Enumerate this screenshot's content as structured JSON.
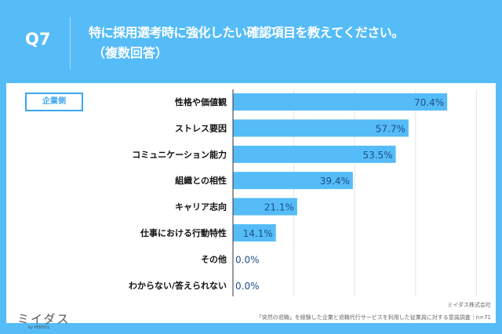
{
  "header": {
    "q": "Q7",
    "title_line1": "特に採用選考時に強化したい確認項目を教えてください。",
    "title_line2": "（複数回答）"
  },
  "badge": "企業側",
  "chart_data": {
    "type": "bar",
    "orientation": "horizontal",
    "categories": [
      "性格や価値観",
      "ストレス要因",
      "コミュニケーション能力",
      "組織との相性",
      "キャリア志向",
      "仕事における行動特性",
      "その他",
      "わからない/答えられない"
    ],
    "values": [
      70.4,
      57.7,
      53.5,
      39.4,
      21.1,
      14.1,
      0.0,
      0.0
    ],
    "labels": [
      "70.4%",
      "57.7%",
      "53.5%",
      "39.4%",
      "21.1%",
      "14.1%",
      "0.0%",
      "0.0%"
    ],
    "xlim": [
      0,
      80
    ],
    "grid": true,
    "bar_color": "#55bcf8",
    "label_color": "#1e4f86"
  },
  "footer": {
    "logo": "ミイダス",
    "logo_sub": "by PERSOL",
    "company": "ミイダス株式会社",
    "source": "「突然の退職」を経験した企業と退職代行サービスを利用した従業員に対する意識調査｜n=71"
  }
}
